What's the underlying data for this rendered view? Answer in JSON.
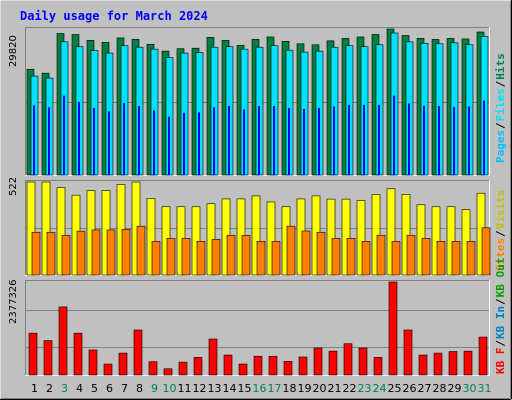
{
  "colors": {
    "background": "#C0C0C0",
    "hits": "#008040",
    "files": "#00E0FF",
    "pages": "#00C0FF",
    "visits_bar": "#0000FF",
    "sites": "#FFFF00",
    "visits": "#FF8000",
    "kb": "#FF0000",
    "title": "#0000FF",
    "hits_label": "#00805C",
    "visits_label": "#C0C000",
    "sites_label": "#FF8000",
    "kbin_label": "#0080C0",
    "kbout_label": "#00A000",
    "kbf_label": "#FF0000",
    "weekend_label": "#00805C"
  },
  "chart_data": {
    "type": "bar",
    "title": "Daily usage for March 2024",
    "categories": [
      "1",
      "2",
      "3",
      "4",
      "5",
      "6",
      "7",
      "8",
      "9",
      "10",
      "11",
      "12",
      "13",
      "14",
      "15",
      "16",
      "17",
      "18",
      "19",
      "20",
      "21",
      "22",
      "23",
      "24",
      "25",
      "26",
      "27",
      "28",
      "29",
      "30",
      "31"
    ],
    "weekend_days": [
      "3",
      "9",
      "10",
      "16",
      "17",
      "23",
      "24",
      "30",
      "31"
    ],
    "panels": [
      {
        "name": "top",
        "ymax": 29820,
        "ymax_label": "29820",
        "legend": [
          "Hits",
          "/",
          "Files",
          "/",
          "Pages"
        ],
        "series": [
          {
            "name": "Hits",
            "values": [
              21600,
              20800,
              28900,
              28700,
              27500,
              27100,
              28000,
              27700,
              26700,
              25300,
              25800,
              25900,
              28100,
              27500,
              26500,
              27700,
              28200,
              27300,
              26800,
              26600,
              27400,
              27900,
              28200,
              28700,
              29820,
              28500,
              27900,
              27700,
              27900,
              27800,
              29200
            ]
          },
          {
            "name": "Files",
            "values": [
              20200,
              19800,
              27200,
              26200,
              25400,
              24900,
              26400,
              26100,
              25700,
              24000,
              24900,
              25000,
              26100,
              26200,
              25700,
              26100,
              26400,
              25500,
              25100,
              25300,
              26100,
              26400,
              26200,
              26600,
              29000,
              27200,
              26900,
              26800,
              27000,
              26600,
              28300
            ]
          },
          {
            "name": "Pages",
            "values": [
              14200,
              13800,
              16200,
              14900,
              13700,
              13000,
              14700,
              14100,
              13200,
              11900,
              12700,
              12800,
              13800,
              14100,
              13400,
              14100,
              14100,
              13700,
              13500,
              13700,
              14000,
              14300,
              14300,
              14300,
              16200,
              14600,
              14100,
              14100,
              13900,
              14000,
              15200
            ]
          }
        ]
      },
      {
        "name": "middle",
        "ymax": 522,
        "ymax_label": "522",
        "legend": [
          "Visits",
          "/",
          "Sites"
        ],
        "series": [
          {
            "name": "Sites",
            "values": [
              522,
              522,
              491,
              448,
              474,
              474,
              508,
              522,
              430,
              383,
              383,
              383,
              400,
              427,
              427,
              444,
              410,
              383,
              427,
              444,
              426,
              426,
              418,
              452,
              484,
              452,
              394,
              383,
              383,
              367,
              459
            ]
          },
          {
            "name": "Visits",
            "values": [
              240,
              240,
              222,
              246,
              253,
              253,
              256,
              274,
              189,
              206,
              206,
              189,
              200,
              223,
              223,
              189,
              189,
              274,
              247,
              240,
              206,
              206,
              189,
              223,
              189,
              223,
              206,
              189,
              189,
              189,
              265
            ]
          }
        ]
      },
      {
        "name": "bottom",
        "ymax": 2377326,
        "ymax_label": "2377326",
        "legend": [
          "KB F",
          "/",
          "KB In",
          "/",
          "KB Out"
        ],
        "series": [
          {
            "name": "KB F",
            "values": [
              1070000,
              880000,
              1740000,
              1070000,
              640000,
              280000,
              560000,
              1150000,
              340000,
              160000,
              330000,
              450000,
              920000,
              510000,
              280000,
              480000,
              480000,
              350000,
              460000,
              690000,
              610000,
              800000,
              690000,
              450000,
              2377326,
              1150000,
              510000,
              560000,
              600000,
              610000,
              970000
            ]
          }
        ]
      }
    ]
  }
}
